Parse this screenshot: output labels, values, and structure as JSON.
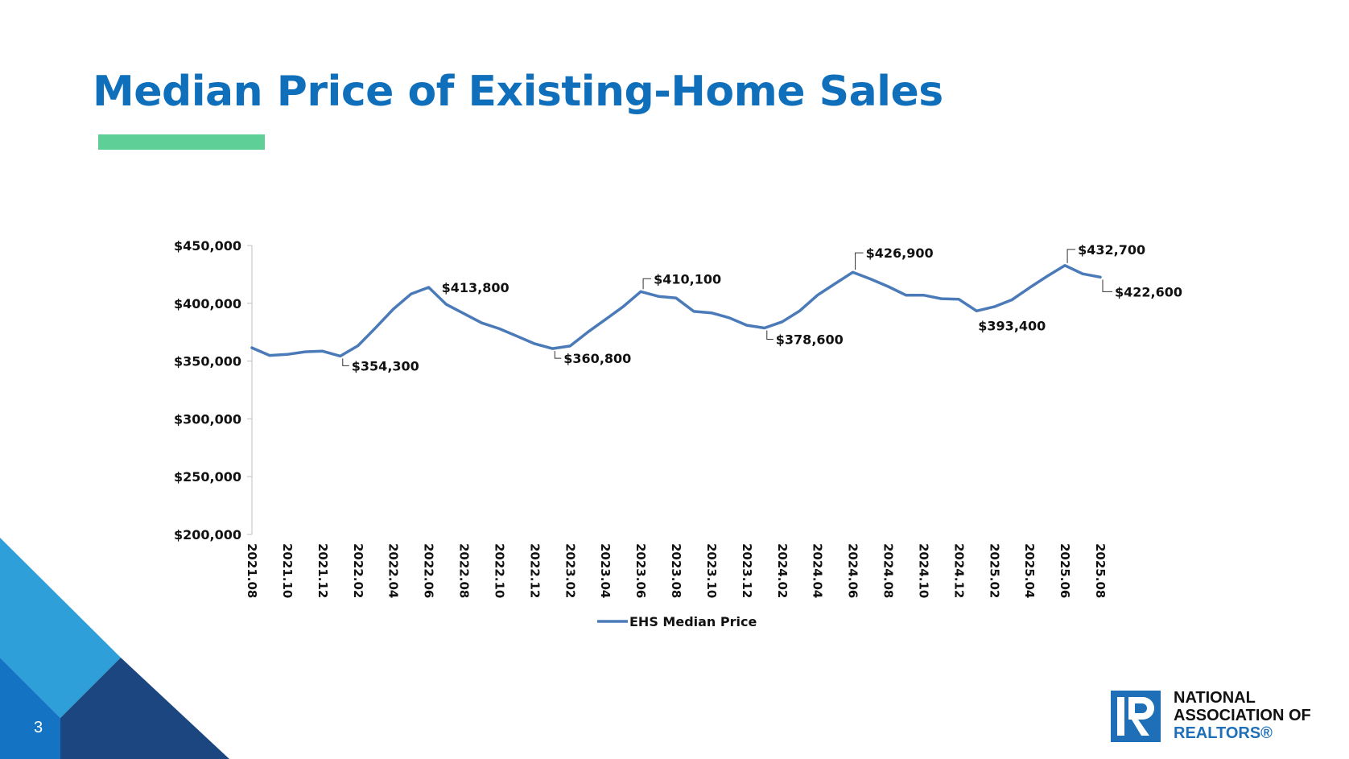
{
  "title": "Median Price of Existing-Home Sales",
  "page_number": "3",
  "logo": {
    "line1": "NATIONAL",
    "line2": "ASSOCIATION OF",
    "line3": "REALTORS®"
  },
  "colors": {
    "title": "#0f6fba",
    "accent_bar": "#5ecf96",
    "series": "#4a7ab8",
    "logo_blue": "#1e6fb7",
    "corner_light": "#2e9fd8",
    "corner_mid": "#1473c2",
    "corner_dark": "#1b467f"
  },
  "chart_data": {
    "type": "line",
    "title": "",
    "xlabel": "",
    "ylabel": "",
    "ylim": [
      200000,
      450000
    ],
    "y_ticks": [
      "$450,000",
      "$400,000",
      "$350,000",
      "$300,000",
      "$250,000",
      "$200,000"
    ],
    "y_tick_values": [
      450000,
      400000,
      350000,
      300000,
      250000,
      200000
    ],
    "x": [
      "2021.08",
      "2021.09",
      "2021.10",
      "2021.11",
      "2021.12",
      "2022.01",
      "2022.02",
      "2022.03",
      "2022.04",
      "2022.05",
      "2022.06",
      "2022.07",
      "2022.08",
      "2022.09",
      "2022.10",
      "2022.11",
      "2022.12",
      "2023.01",
      "2023.02",
      "2023.03",
      "2023.04",
      "2023.05",
      "2023.06",
      "2023.07",
      "2023.08",
      "2023.09",
      "2023.10",
      "2023.11",
      "2023.12",
      "2024.01",
      "2024.02",
      "2024.03",
      "2024.04",
      "2024.05",
      "2024.06",
      "2024.07",
      "2024.08",
      "2024.09",
      "2024.10",
      "2024.11",
      "2024.12",
      "2025.01",
      "2025.02",
      "2025.03",
      "2025.04",
      "2025.05",
      "2025.06",
      "2025.07",
      "2025.08"
    ],
    "x_tick_labels": [
      "2021.08",
      "2021.10",
      "2021.12",
      "2022.02",
      "2022.04",
      "2022.06",
      "2022.08",
      "2022.10",
      "2022.12",
      "2023.02",
      "2023.04",
      "2023.06",
      "2023.08",
      "2023.10",
      "2023.12",
      "2024.02",
      "2024.04",
      "2024.06",
      "2024.08",
      "2024.10",
      "2024.12",
      "2025.02",
      "2025.04",
      "2025.06",
      "2025.08"
    ],
    "series": [
      {
        "name": "EHS Median Price",
        "values": [
          361500,
          354900,
          355800,
          358000,
          358600,
          354300,
          363300,
          378800,
          395000,
          408000,
          413800,
          399000,
          391000,
          383000,
          378000,
          371500,
          365000,
          360800,
          363000,
          375000,
          386000,
          397000,
          410100,
          406000,
          404500,
          393000,
          391700,
          387500,
          381000,
          378600,
          384000,
          393500,
          407000,
          417000,
          426900,
          421000,
          414500,
          407000,
          407000,
          404000,
          403500,
          393400,
          397000,
          403000,
          413500,
          423500,
          432700,
          425500,
          422600
        ]
      }
    ],
    "annotations": [
      {
        "x": "2022.01",
        "label": "$354,300"
      },
      {
        "x": "2022.06",
        "label": "$413,800"
      },
      {
        "x": "2023.01",
        "label": "$360,800"
      },
      {
        "x": "2023.06",
        "label": "$410,100"
      },
      {
        "x": "2024.01",
        "label": "$378,600"
      },
      {
        "x": "2024.06",
        "label": "$426,900"
      },
      {
        "x": "2025.01",
        "label": "$393,400"
      },
      {
        "x": "2025.06",
        "label": "$432,700"
      },
      {
        "x": "2025.08",
        "label": "$422,600"
      }
    ],
    "legend": {
      "position": "bottom"
    },
    "grid": false
  }
}
